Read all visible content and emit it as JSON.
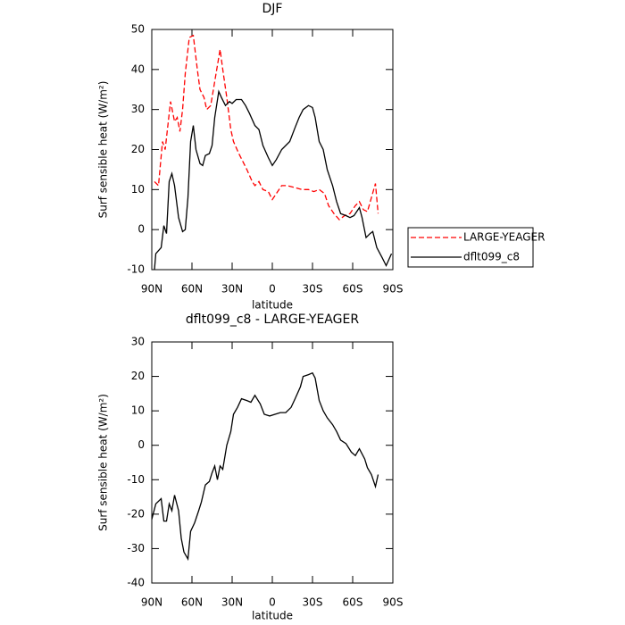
{
  "chart_data": [
    {
      "type": "line",
      "title": "DJF",
      "x_label": "latitude",
      "y_label": "Surf sensible heat (W/m²)",
      "xlim": [
        90,
        -90
      ],
      "ylim": [
        -10,
        50
      ],
      "xticks": [
        {
          "value": 90,
          "label": "90N"
        },
        {
          "value": 60,
          "label": "60N"
        },
        {
          "value": 30,
          "label": "30N"
        },
        0,
        {
          "value": -30,
          "label": "30S"
        },
        {
          "value": -60,
          "label": "60S"
        },
        {
          "value": -90,
          "label": "90S"
        }
      ],
      "yticks": [
        -10,
        0,
        10,
        20,
        30,
        40,
        50
      ],
      "legend": "right",
      "series": [
        {
          "name": "LARGE-YEAGER",
          "color": "#ff0000",
          "line_style": "dashed",
          "x": [
            88,
            85,
            82,
            80,
            76,
            73,
            71,
            69,
            67,
            65,
            62,
            59,
            56,
            54,
            51,
            49,
            46,
            43,
            39,
            37,
            34,
            31,
            29,
            25,
            22,
            19,
            15,
            13,
            10,
            7,
            3,
            0,
            -3,
            -7,
            -11,
            -17,
            -22,
            -27,
            -31,
            -35,
            -39,
            -42,
            -46,
            -50,
            -54,
            -58,
            -62,
            -65,
            -68,
            -71,
            -74,
            -77,
            -79
          ],
          "values": [
            12,
            11,
            22,
            20,
            32,
            27,
            28,
            24.5,
            30,
            39,
            48,
            48.5,
            40,
            35,
            33,
            30,
            31,
            37,
            45,
            40,
            33,
            25,
            22,
            19,
            17,
            15,
            12,
            11,
            12,
            10,
            9.5,
            7.5,
            9,
            11,
            11,
            10.5,
            10,
            10,
            9.5,
            10,
            9,
            6,
            4,
            2.5,
            3.5,
            4,
            6,
            7,
            5,
            4.5,
            8,
            11.5,
            4
          ]
        },
        {
          "name": "dflt099_c8",
          "color": "#000000",
          "line_style": "solid",
          "x": [
            88,
            87,
            83,
            81,
            79,
            77,
            75,
            73,
            70,
            67,
            65,
            63,
            61,
            59,
            57,
            54,
            52,
            50,
            47,
            45,
            43,
            40,
            38,
            35,
            32,
            30,
            27,
            23,
            20,
            17,
            13,
            10,
            7,
            3,
            0,
            -3,
            -7,
            -10,
            -13,
            -17,
            -20,
            -23,
            -27,
            -30,
            -32,
            -35,
            -38,
            -41,
            -45,
            -48,
            -51,
            -55,
            -58,
            -61,
            -65,
            -67,
            -70,
            -73,
            -75,
            -78,
            -82,
            -85,
            -89
          ],
          "values": [
            -10,
            -6,
            -4.5,
            1,
            -1,
            12,
            14,
            11,
            3,
            -0.5,
            0,
            8,
            22,
            26,
            20,
            16.5,
            16,
            18.5,
            19,
            21,
            28,
            34.5,
            33,
            31,
            32,
            31.5,
            32.5,
            32.5,
            31,
            29,
            26,
            25,
            21,
            18,
            16,
            17.5,
            20,
            21,
            22,
            25.5,
            28,
            30,
            31,
            30.5,
            28,
            22,
            20,
            15,
            11,
            7,
            4,
            3.5,
            3,
            3.5,
            5.5,
            3,
            -2,
            -1,
            -0.5,
            -4.5,
            -7,
            -9,
            -6
          ]
        }
      ]
    },
    {
      "type": "line",
      "title": "dflt099_c8 - LARGE-YEAGER",
      "x_label": "latitude",
      "y_label": "Surf sensible heat (W/m²)",
      "xlim": [
        90,
        -90
      ],
      "ylim": [
        -40,
        30
      ],
      "xticks": [
        {
          "value": 90,
          "label": "90N"
        },
        {
          "value": 60,
          "label": "60N"
        },
        {
          "value": 30,
          "label": "30N"
        },
        0,
        {
          "value": -30,
          "label": "30S"
        },
        {
          "value": -60,
          "label": "60S"
        },
        {
          "value": -90,
          "label": "90S"
        }
      ],
      "yticks": [
        -40,
        -30,
        -20,
        -10,
        0,
        10,
        20,
        30
      ],
      "series": [
        {
          "color": "#000000",
          "line_style": "solid",
          "x": [
            90,
            87,
            83,
            81,
            79,
            77,
            75,
            73,
            70,
            68,
            66,
            63,
            61,
            58,
            55,
            53,
            50,
            47,
            45,
            43,
            41,
            39,
            37,
            34,
            31,
            29,
            26,
            23,
            19,
            16,
            13,
            9,
            6,
            2,
            -2,
            -6,
            -10,
            -14,
            -17,
            -21,
            -23,
            -27,
            -30,
            -32,
            -35,
            -38,
            -41,
            -45,
            -48,
            -51,
            -55,
            -59,
            -62,
            -65,
            -69,
            -71,
            -74,
            -77,
            -79
          ],
          "values": [
            -21.5,
            -17,
            -15.5,
            -22,
            -22,
            -17,
            -19,
            -14.5,
            -19,
            -27,
            -31,
            -33,
            -25,
            -22.5,
            -19,
            -16.5,
            -11.5,
            -10.5,
            -8,
            -6,
            -10,
            -6,
            -7,
            0,
            4,
            9,
            11,
            13.5,
            13,
            12.5,
            14.5,
            12,
            9,
            8.5,
            9,
            9.5,
            9.5,
            11,
            13.5,
            17,
            20,
            20.5,
            21,
            19.5,
            13,
            10,
            8,
            6,
            4,
            1.5,
            0.5,
            -2,
            -3,
            -1,
            -4,
            -6.5,
            -8.5,
            -12,
            -8.5
          ]
        }
      ]
    }
  ]
}
